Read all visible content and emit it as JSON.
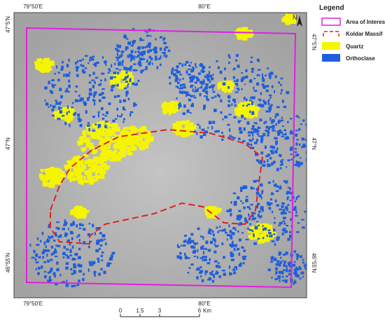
{
  "map": {
    "graticule": {
      "top": [
        "79°50'E",
        "80°E"
      ],
      "bottom": [
        "79°50'E",
        "80°E"
      ],
      "left": [
        "47°5'N",
        "47°N",
        "46°55'N"
      ],
      "right": [
        "47°5'N",
        "47°N",
        "46°55'N"
      ]
    },
    "north": "N",
    "legend": {
      "title": "Legend",
      "items": [
        "Area of Interest",
        "Koldar Massif",
        "Quartz",
        "Orthoclase"
      ]
    },
    "scale_bar": {
      "labels": [
        "0",
        "1.5",
        "3",
        "6"
      ],
      "unit": "Km"
    }
  }
}
